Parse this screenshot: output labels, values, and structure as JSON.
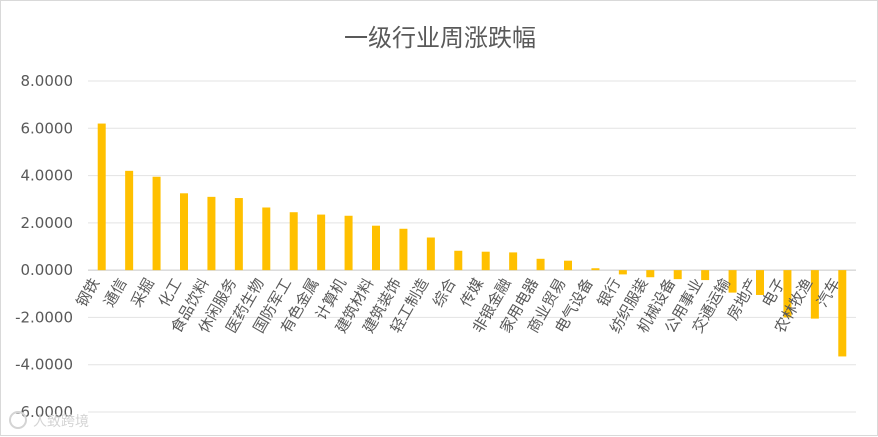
{
  "chart_data": {
    "type": "bar",
    "title": "一级行业周涨跌幅",
    "xlabel": "",
    "ylabel": "",
    "ylim": [
      -6,
      8
    ],
    "yticks": [
      "-6.0000",
      "-4.0000",
      "-2.0000",
      "0.0000",
      "2.0000",
      "4.0000",
      "6.0000",
      "8.0000"
    ],
    "grid": true,
    "legend": "none",
    "bar_color": "#FFC000",
    "categories": [
      "钢铁",
      "通信",
      "采掘",
      "化工",
      "食品饮料",
      "休闲服务",
      "医药生物",
      "国防军工",
      "有色金属",
      "计算机",
      "建筑材料",
      "建筑装饰",
      "轻工制造",
      "综合",
      "传媒",
      "非银金融",
      "家用电器",
      "商业贸易",
      "电气设备",
      "银行",
      "纺织服装",
      "机械设备",
      "公用事业",
      "交通运输",
      "房地产",
      "电子",
      "农林牧渔",
      "汽车"
    ],
    "values": [
      6.2,
      4.2,
      3.95,
      3.25,
      3.1,
      3.05,
      2.65,
      2.45,
      2.35,
      2.3,
      1.88,
      1.75,
      1.38,
      0.82,
      0.78,
      0.75,
      0.48,
      0.4,
      0.08,
      -0.18,
      -0.3,
      -0.38,
      -0.42,
      -0.95,
      -1.05,
      -2.0,
      -2.05,
      -3.65
    ]
  },
  "watermark": {
    "text": "人致跨境"
  }
}
